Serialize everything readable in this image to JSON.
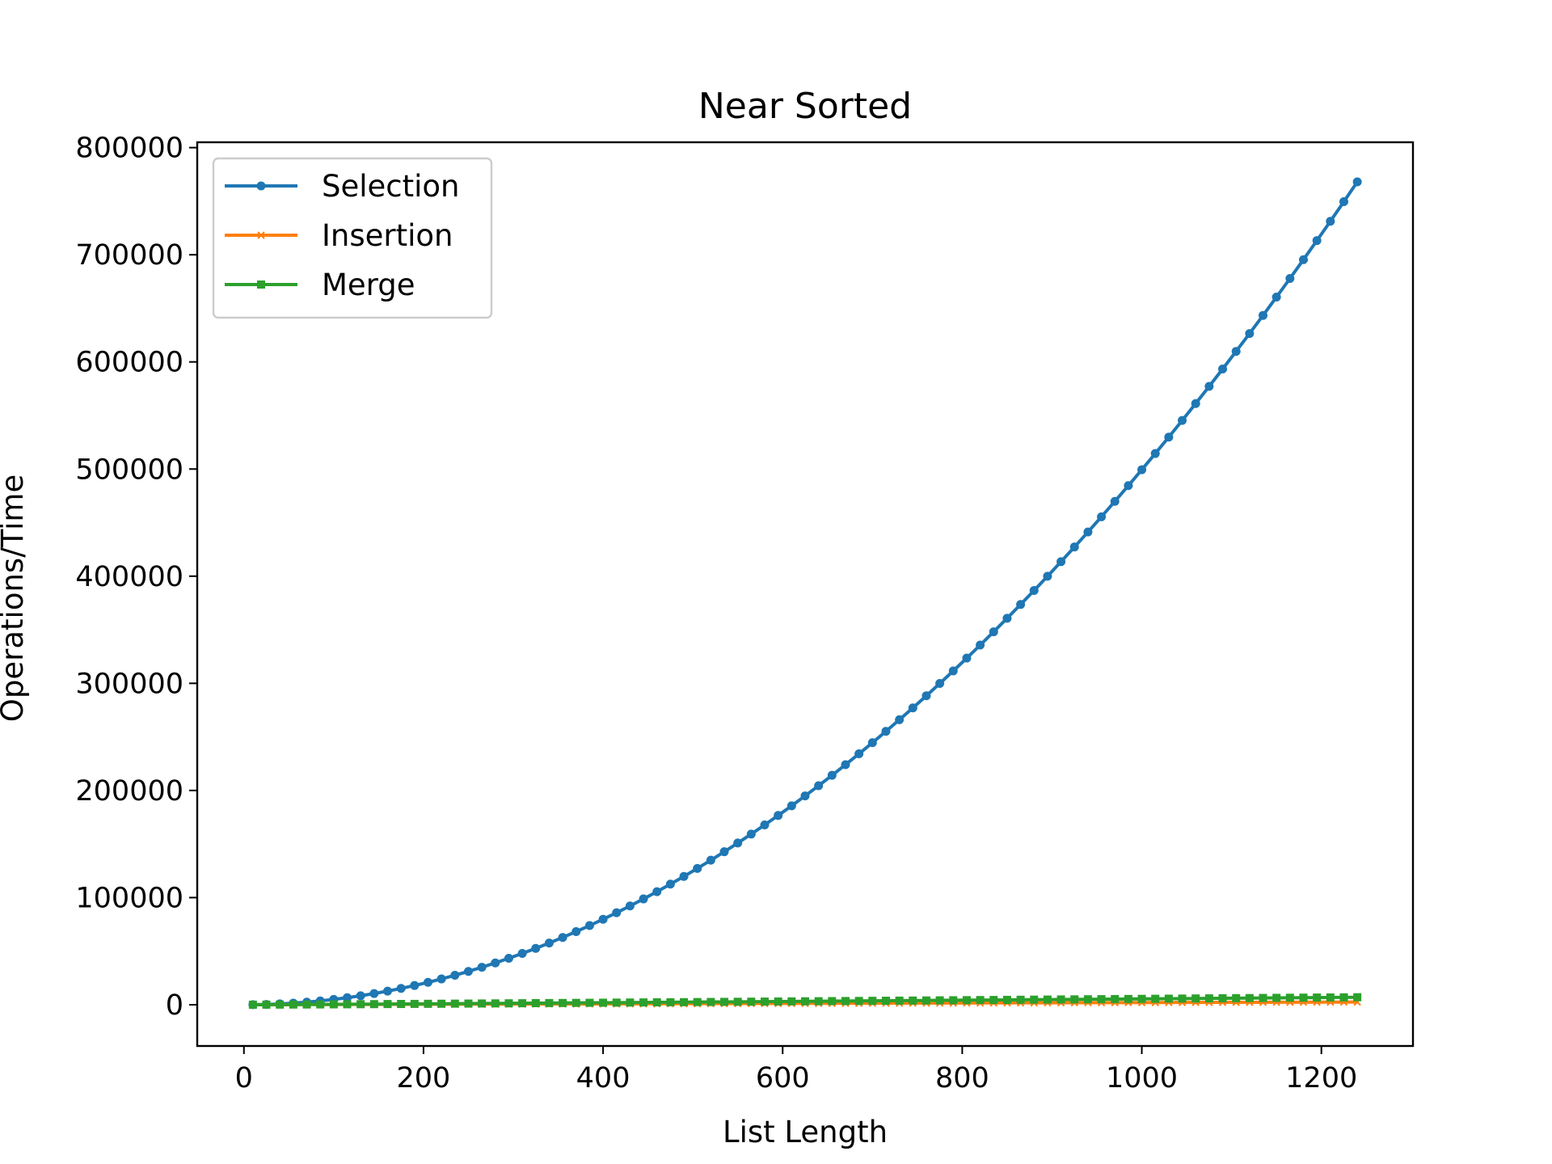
{
  "chart_data": {
    "type": "line",
    "title": "Near Sorted",
    "xlabel": "List Length",
    "ylabel": "Operations/Time",
    "xlim": [
      -52,
      1302
    ],
    "ylim": [
      -38500,
      805000
    ],
    "x_ticks": [
      0,
      200,
      400,
      600,
      800,
      1000,
      1200
    ],
    "y_ticks": [
      0,
      100000,
      200000,
      300000,
      400000,
      500000,
      600000,
      700000,
      800000
    ],
    "grid": false,
    "legend_position": "top-left",
    "x_start": 10,
    "x_step": 15,
    "x_count": 83,
    "series": [
      {
        "name": "Selection",
        "color": "#1f77b4",
        "marker": "circle",
        "model": "n*(n-1)/2",
        "last_value": 768000
      },
      {
        "name": "Insertion",
        "color": "#ff7f0e",
        "marker": "x",
        "model": "linear",
        "last_value": 2500
      },
      {
        "name": "Merge",
        "color": "#2ca02c",
        "marker": "square",
        "model": "n*log2(n)",
        "last_value": 7000
      }
    ]
  }
}
